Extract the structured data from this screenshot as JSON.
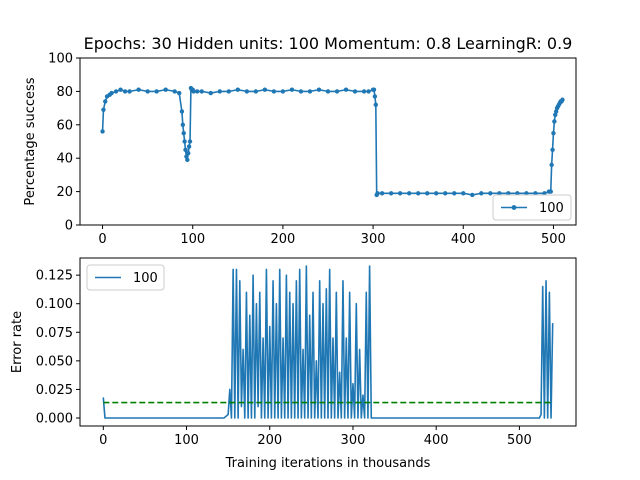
{
  "chart_data": [
    {
      "type": "line",
      "title": "Epochs: 30 Hidden units: 100 Momentum: 0.8 LearningR: 0.9",
      "xlabel": "",
      "ylabel": "Percentage success",
      "xlim": [
        -25,
        525
      ],
      "ylim": [
        0,
        100
      ],
      "xticks": [
        0,
        100,
        200,
        300,
        400,
        500
      ],
      "yticks": [
        0,
        20,
        40,
        60,
        80,
        100
      ],
      "grid": false,
      "legend_position": "lower-right",
      "series": [
        {
          "name": "100",
          "color": "#1f77b4",
          "marker": "circle",
          "x": [
            0,
            1,
            3,
            5,
            8,
            10,
            15,
            20,
            25,
            30,
            40,
            50,
            60,
            70,
            80,
            85,
            88,
            89,
            90,
            91,
            92,
            93,
            94,
            95,
            96,
            97,
            98,
            99,
            100,
            101,
            105,
            110,
            120,
            130,
            140,
            150,
            160,
            170,
            180,
            190,
            200,
            210,
            220,
            230,
            240,
            250,
            260,
            270,
            280,
            290,
            295,
            300,
            301,
            302,
            303,
            304,
            305,
            310,
            320,
            330,
            340,
            350,
            360,
            370,
            380,
            390,
            400,
            410,
            420,
            430,
            440,
            450,
            460,
            470,
            480,
            490,
            495,
            497,
            498,
            499,
            500,
            501,
            502,
            503,
            504,
            505,
            506,
            507,
            508,
            509,
            510
          ],
          "y": [
            56,
            69,
            74,
            77,
            78,
            79,
            80,
            81,
            80,
            80,
            81,
            80,
            80,
            81,
            80,
            79,
            68,
            60,
            55,
            50,
            45,
            41,
            39,
            43,
            47,
            50,
            82,
            81,
            81,
            80,
            80,
            80,
            79,
            80,
            80,
            81,
            80,
            80,
            81,
            80,
            80,
            81,
            80,
            80,
            81,
            80,
            80,
            81,
            80,
            80,
            80,
            81,
            81,
            77,
            72,
            18,
            19,
            19,
            19,
            19,
            19,
            19,
            19,
            19,
            19,
            19,
            19,
            18,
            19,
            19,
            19,
            19,
            19,
            19,
            19,
            19,
            20,
            20,
            36,
            45,
            55,
            62,
            66,
            68,
            70,
            71,
            72,
            73,
            74,
            74,
            75
          ]
        }
      ]
    },
    {
      "type": "line",
      "title": "",
      "xlabel": "Training iterations in thousands",
      "ylabel": "Error rate",
      "xlim": [
        -28,
        568
      ],
      "ylim": [
        -0.007,
        0.14
      ],
      "xticks": [
        0,
        100,
        200,
        300,
        400,
        500
      ],
      "yticks": [
        0.0,
        0.025,
        0.05,
        0.075,
        0.1,
        0.125
      ],
      "ytick_labels": [
        "0.000",
        "0.025",
        "0.050",
        "0.075",
        "0.100",
        "0.125"
      ],
      "grid": false,
      "legend_position": "upper-left",
      "series": [
        {
          "name": "100",
          "color": "#1f77b4",
          "x": [
            0,
            2,
            145,
            150,
            152,
            154,
            156,
            158,
            160,
            162,
            164,
            166,
            168,
            170,
            172,
            174,
            176,
            178,
            180,
            182,
            184,
            186,
            188,
            190,
            192,
            194,
            196,
            198,
            200,
            202,
            204,
            206,
            208,
            210,
            212,
            214,
            216,
            218,
            220,
            222,
            224,
            226,
            228,
            230,
            232,
            234,
            236,
            238,
            240,
            242,
            244,
            246,
            248,
            250,
            252,
            254,
            256,
            258,
            260,
            262,
            264,
            266,
            268,
            270,
            272,
            274,
            276,
            278,
            280,
            282,
            284,
            286,
            288,
            290,
            292,
            294,
            296,
            298,
            300,
            302,
            304,
            306,
            308,
            310,
            312,
            314,
            316,
            318,
            320,
            322,
            524,
            526,
            528,
            530,
            532,
            534,
            536,
            538,
            540
          ],
          "y": [
            0.018,
            0.0,
            0.0,
            0.003,
            0.025,
            0.0,
            0.13,
            0.0,
            0.13,
            0.0,
            0.12,
            0.01,
            0.06,
            0.0,
            0.11,
            0.0,
            0.09,
            0.0,
            0.125,
            0.0,
            0.1,
            0.01,
            0.11,
            0.0,
            0.07,
            0.0,
            0.13,
            0.0,
            0.08,
            0.0,
            0.12,
            0.0,
            0.1,
            0.0,
            0.13,
            0.0,
            0.07,
            0.0,
            0.125,
            0.0,
            0.11,
            0.0,
            0.1,
            0.0,
            0.12,
            0.0,
            0.13,
            0.0,
            0.06,
            0.0,
            0.133,
            0.0,
            0.09,
            0.0,
            0.11,
            0.0,
            0.05,
            0.0,
            0.12,
            0.0,
            0.1,
            0.0,
            0.113,
            0.0,
            0.13,
            0.0,
            0.07,
            0.0,
            0.11,
            0.0,
            0.04,
            0.0,
            0.12,
            0.0,
            0.07,
            0.0,
            0.11,
            0.0,
            0.03,
            0.0,
            0.1,
            0.0,
            0.06,
            0.0,
            0.02,
            0.0,
            0.11,
            0.0,
            0.133,
            0.0,
            0.0,
            0.003,
            0.115,
            0.0,
            0.12,
            0.0,
            0.11,
            0.0,
            0.083
          ]
        },
        {
          "name": "",
          "color": "#008000",
          "dashed": true,
          "x": [
            0,
            540
          ],
          "y": [
            0.0135,
            0.0135
          ]
        }
      ]
    }
  ]
}
